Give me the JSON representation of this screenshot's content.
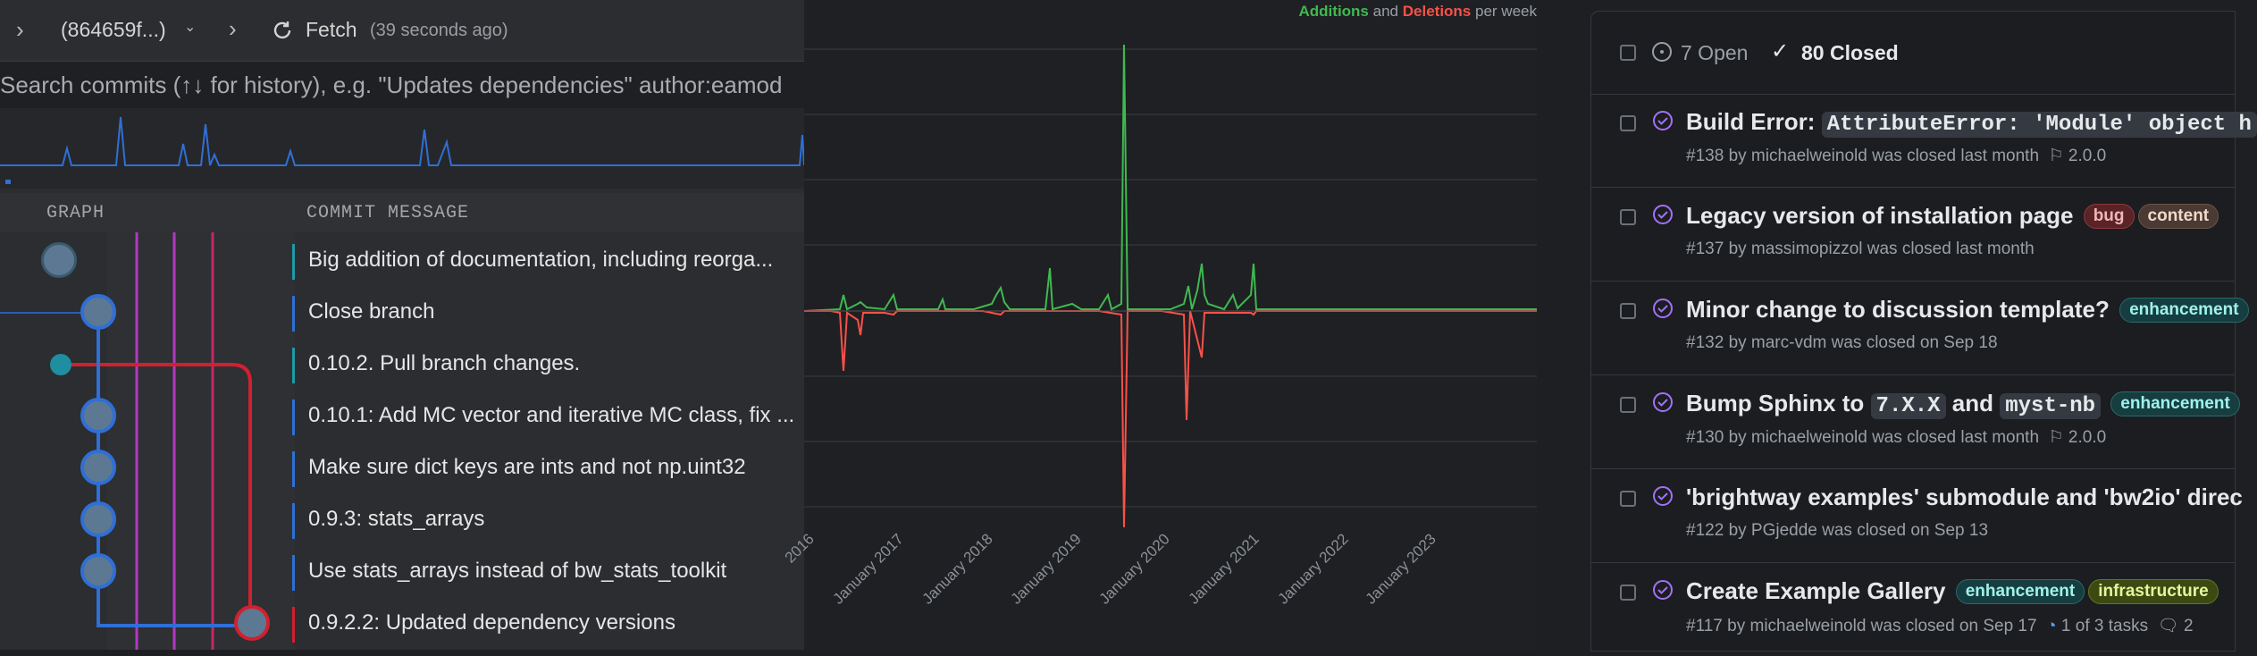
{
  "toolbar": {
    "branch_label": "(864659f...)",
    "fetch_label": "Fetch",
    "fetch_time": "(39 seconds ago)"
  },
  "search": {
    "placeholder": "Search commits (↑↓ for history), e.g. \"Updates dependencies\" author:eamod"
  },
  "columns": {
    "graph": "GRAPH",
    "message": "COMMIT MESSAGE"
  },
  "commits": [
    {
      "message": "Big addition of documentation, including reorga..."
    },
    {
      "message": "Close branch"
    },
    {
      "message": "0.10.2. Pull branch changes."
    },
    {
      "message": "0.10.1: Add MC vector and iterative MC class, fix ..."
    },
    {
      "message": "Make sure dict keys are ints and not np.uint32"
    },
    {
      "message": "0.9.3: stats_arrays"
    },
    {
      "message": "Use stats_arrays instead of bw_stats_toolkit"
    },
    {
      "message": "0.9.2.2: Updated dependency versions"
    }
  ],
  "chart_data": {
    "type": "area",
    "legend": {
      "additions": "Additions",
      "and": "and",
      "deletions": "Deletions",
      "suffix": "per week"
    },
    "x_ticks": [
      "2016",
      "January 2017",
      "January 2018",
      "January 2019",
      "January 2020",
      "January 2021",
      "January 2022",
      "January 2023"
    ],
    "grid": true,
    "colors": {
      "additions": "#3fb950",
      "deletions": "#f85149"
    }
  },
  "issues": {
    "open_label": "7 Open",
    "closed_label": "80 Closed",
    "items": [
      {
        "title_text": "Build Error: ",
        "title_code": "AttributeError: 'Module' object h",
        "number": "#138",
        "by": "by michaelweinold was closed last month",
        "milestone": "2.0.0"
      },
      {
        "title_text": "Legacy version of installation page",
        "labels": [
          "bug",
          "content"
        ],
        "number": "#137",
        "by": "by massimopizzol was closed last month"
      },
      {
        "title_text": "Minor change to discussion template?",
        "labels": [
          "enhancement"
        ],
        "number": "#132",
        "by": "by marc-vdm was closed on Sep 18"
      },
      {
        "title_pre": "Bump Sphinx to ",
        "code1": "7.X.X",
        "title_mid": " and ",
        "code2": "myst-nb",
        "labels": [
          "enhancement"
        ],
        "number": "#130",
        "by": "by michaelweinold was closed last month",
        "milestone": "2.0.0"
      },
      {
        "title_text": "'brightway examples' submodule and 'bw2io' direc",
        "number": "#122",
        "by": "by PGjedde was closed on Sep 13"
      },
      {
        "title_text": "Create Example Gallery",
        "labels": [
          "enhancement",
          "infrastructure"
        ],
        "number": "#117",
        "by": "by michaelweinold was closed on Sep 17",
        "tasks": "1 of 3 tasks",
        "extra": "2"
      }
    ]
  }
}
